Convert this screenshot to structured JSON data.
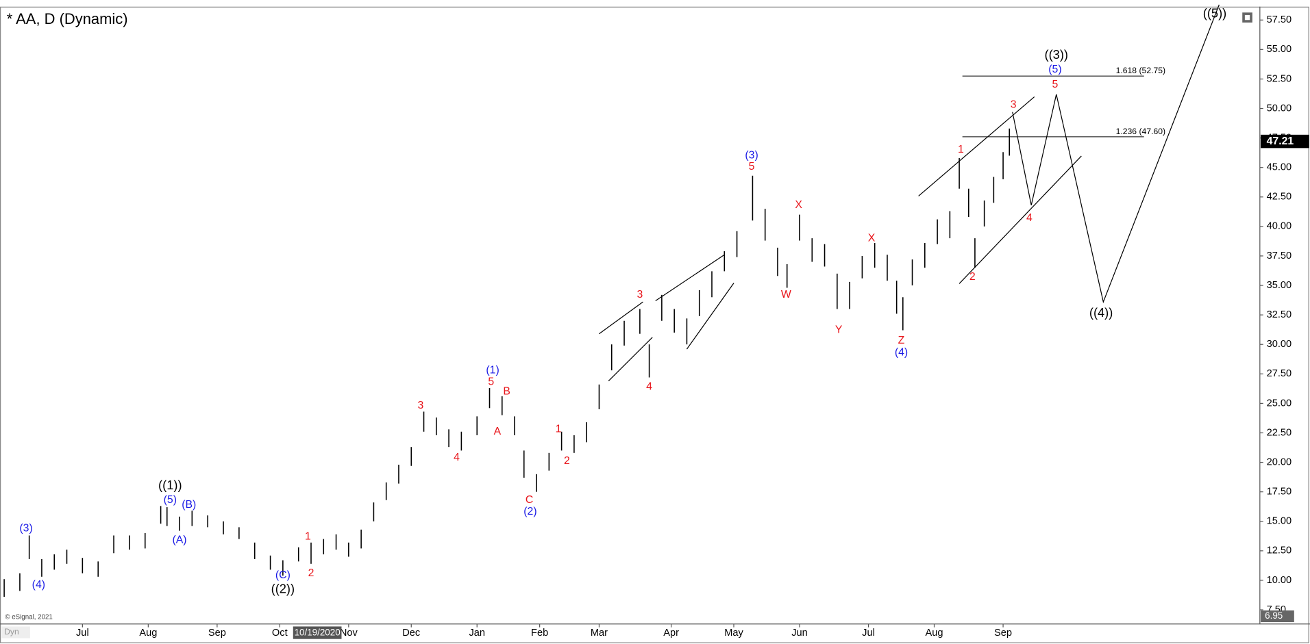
{
  "chart_data": {
    "type": "ohlc",
    "title": "* AA, D (Dynamic)",
    "copyright": "© eSignal, 2021",
    "corner_label": "Dyn",
    "cursor_label": {
      "value": 100,
      "label": "10/19/2020"
    },
    "last_price": 47.21,
    "axis_low": 6.95,
    "xlim": [
      0,
      401
    ],
    "ylim": [
      7.5,
      57.5
    ],
    "xticks": [
      {
        "value": 25,
        "label": "Jul"
      },
      {
        "value": 46,
        "label": "Aug"
      },
      {
        "value": 68,
        "label": "Sep"
      },
      {
        "value": 88,
        "label": "Oct"
      },
      {
        "value": 110,
        "label": "Nov"
      },
      {
        "value": 130,
        "label": "Dec"
      },
      {
        "value": 151,
        "label": "Jan"
      },
      {
        "value": 171,
        "label": "Feb"
      },
      {
        "value": 190,
        "label": "Mar"
      },
      {
        "value": 213,
        "label": "Apr"
      },
      {
        "value": 233,
        "label": "May"
      },
      {
        "value": 254,
        "label": "Jun"
      },
      {
        "value": 276,
        "label": "Jul"
      },
      {
        "value": 297,
        "label": "Aug"
      },
      {
        "value": 319,
        "label": "Sep"
      }
    ],
    "yticks": [
      {
        "value": 7.5,
        "label": "7.50"
      },
      {
        "value": 10,
        "label": "10.00"
      },
      {
        "value": 12.5,
        "label": "12.50"
      },
      {
        "value": 15,
        "label": "15.00"
      },
      {
        "value": 17.5,
        "label": "17.50"
      },
      {
        "value": 20,
        "label": "20.00"
      },
      {
        "value": 22.5,
        "label": "22.50"
      },
      {
        "value": 25,
        "label": "25.00"
      },
      {
        "value": 27.5,
        "label": "27.50"
      },
      {
        "value": 30,
        "label": "30.00"
      },
      {
        "value": 32.5,
        "label": "32.50"
      },
      {
        "value": 35,
        "label": "35.00"
      },
      {
        "value": 37.5,
        "label": "37.50"
      },
      {
        "value": 40,
        "label": "40.00"
      },
      {
        "value": 42.5,
        "label": "42.50"
      },
      {
        "value": 45,
        "label": "45.00"
      },
      {
        "value": 47.5,
        "label": "47.50"
      },
      {
        "value": 50,
        "label": "50.00"
      },
      {
        "value": 52.5,
        "label": "52.50"
      },
      {
        "value": 55,
        "label": "55.00"
      },
      {
        "value": 57.5,
        "label": "57.50"
      }
    ],
    "x": [
      0,
      5,
      8,
      12,
      16,
      20,
      25,
      30,
      35,
      40,
      45,
      50,
      52,
      56,
      60,
      65,
      70,
      75,
      80,
      85,
      89,
      94,
      98,
      102,
      106,
      110,
      114,
      118,
      122,
      126,
      130,
      134,
      138,
      142,
      146,
      151,
      155,
      159,
      163,
      166,
      170,
      174,
      178,
      182,
      186,
      190,
      194,
      198,
      203,
      206,
      210,
      214,
      218,
      222,
      226,
      230,
      234,
      239,
      243,
      247,
      250,
      254,
      258,
      262,
      266,
      270,
      274,
      278,
      282,
      285,
      287,
      290,
      294,
      298,
      302,
      305,
      308,
      310,
      313,
      316,
      319,
      321
    ],
    "low": [
      8.6,
      9.1,
      11.8,
      10.3,
      10.9,
      11.4,
      10.6,
      10.3,
      12.3,
      12.6,
      12.7,
      14.8,
      14.6,
      14.2,
      14.6,
      14.5,
      13.9,
      13.5,
      11.8,
      10.9,
      10.4,
      11.6,
      11.4,
      12.2,
      12.6,
      12.0,
      12.7,
      15.0,
      16.8,
      18.2,
      19.7,
      22.6,
      22.3,
      21.3,
      21.0,
      22.3,
      24.6,
      24.0,
      22.3,
      18.7,
      17.5,
      19.3,
      21.0,
      20.8,
      21.7,
      24.5,
      27.8,
      29.9,
      30.9,
      27.2,
      32.0,
      31.0,
      30.0,
      32.4,
      34.0,
      36.2,
      37.4,
      40.5,
      38.8,
      35.8,
      34.8,
      38.8,
      37.0,
      36.6,
      33.0,
      33.0,
      35.6,
      36.5,
      35.4,
      32.6,
      31.2,
      35.0,
      36.5,
      38.5,
      39.0,
      43.2,
      40.8,
      36.5,
      40.0,
      42.0,
      44.0,
      46.0
    ],
    "high": [
      10.1,
      10.6,
      13.8,
      11.8,
      12.2,
      12.6,
      11.9,
      11.6,
      13.8,
      13.8,
      14.0,
      16.3,
      16.2,
      15.4,
      15.9,
      15.5,
      15.0,
      14.5,
      13.2,
      12.1,
      11.7,
      12.8,
      13.2,
      13.5,
      13.9,
      13.2,
      14.3,
      16.6,
      18.3,
      19.8,
      21.3,
      24.3,
      23.8,
      22.8,
      22.6,
      23.9,
      26.3,
      25.6,
      23.9,
      21.0,
      19.0,
      20.8,
      22.6,
      22.3,
      23.4,
      26.6,
      30.0,
      32.0,
      33.0,
      30.0,
      34.2,
      33.0,
      32.2,
      34.6,
      36.2,
      37.9,
      39.6,
      44.3,
      41.5,
      38.2,
      36.8,
      41.0,
      39.0,
      38.5,
      36.0,
      35.3,
      37.5,
      38.6,
      37.6,
      35.4,
      34.0,
      37.2,
      38.6,
      40.6,
      41.3,
      45.8,
      43.2,
      39.0,
      42.2,
      44.2,
      46.3,
      48.3
    ],
    "fib_levels": [
      {
        "value": 52.75,
        "label": "1.618 (52.75)"
      },
      {
        "value": 47.6,
        "label": "1.236 (47.60)"
      }
    ],
    "fib_x": [
      306,
      364
    ],
    "channels": [
      {
        "x": [
          292,
          329
        ],
        "y": [
          42.58,
          50.99
        ]
      },
      {
        "x": [
          305,
          344
        ],
        "y": [
          35.15,
          45.97
        ]
      },
      {
        "x": [
          190,
          204
        ],
        "y": [
          30.9,
          33.6
        ]
      },
      {
        "x": [
          193,
          207
        ],
        "y": [
          26.9,
          30.6
        ]
      },
      {
        "x": [
          208,
          230
        ],
        "y": [
          33.7,
          37.6
        ]
      },
      {
        "x": [
          218,
          233
        ],
        "y": [
          29.6,
          35.2
        ]
      }
    ],
    "projection": {
      "x": [
        322,
        328,
        336,
        351,
        388
      ],
      "y": [
        49.7,
        41.8,
        51.2,
        33.6,
        58.8
      ]
    },
    "wave_labels": [
      {
        "text": "((1))",
        "x": 53,
        "y": 18.0,
        "color": "#000000"
      },
      {
        "text": "(5)",
        "x": 53,
        "y": 16.8,
        "color": "#1a1ae6"
      },
      {
        "text": "(B)",
        "x": 59,
        "y": 16.4,
        "color": "#1a1ae6"
      },
      {
        "text": "(A)",
        "x": 56,
        "y": 13.4,
        "color": "#1a1ae6"
      },
      {
        "text": "(3)",
        "x": 7,
        "y": 14.4,
        "color": "#1a1ae6"
      },
      {
        "text": "(4)",
        "x": 11,
        "y": 9.6,
        "color": "#1a1ae6"
      },
      {
        "text": "(C)",
        "x": 89,
        "y": 10.4,
        "color": "#1a1ae6"
      },
      {
        "text": "((2))",
        "x": 89,
        "y": 9.2,
        "color": "#000000"
      },
      {
        "text": "1",
        "x": 97,
        "y": 13.7,
        "color": "#e8141a"
      },
      {
        "text": "2",
        "x": 98,
        "y": 10.6,
        "color": "#e8141a"
      },
      {
        "text": "3",
        "x": 133,
        "y": 24.8,
        "color": "#e8141a"
      },
      {
        "text": "4",
        "x": 144.5,
        "y": 20.4,
        "color": "#e8141a"
      },
      {
        "text": "(1)",
        "x": 156,
        "y": 27.8,
        "color": "#1a1ae6"
      },
      {
        "text": "5",
        "x": 155.5,
        "y": 26.8,
        "color": "#e8141a"
      },
      {
        "text": "B",
        "x": 160.5,
        "y": 26.0,
        "color": "#e8141a"
      },
      {
        "text": "A",
        "x": 157.5,
        "y": 22.6,
        "color": "#e8141a"
      },
      {
        "text": "C",
        "x": 167.7,
        "y": 16.8,
        "color": "#e8141a"
      },
      {
        "text": "(2)",
        "x": 168,
        "y": 15.8,
        "color": "#1a1ae6"
      },
      {
        "text": "1",
        "x": 177,
        "y": 22.8,
        "color": "#e8141a"
      },
      {
        "text": "2",
        "x": 179.7,
        "y": 20.1,
        "color": "#e8141a"
      },
      {
        "text": "3",
        "x": 203,
        "y": 34.2,
        "color": "#e8141a"
      },
      {
        "text": "4",
        "x": 206,
        "y": 26.4,
        "color": "#e8141a"
      },
      {
        "text": "(3)",
        "x": 238.7,
        "y": 46.0,
        "color": "#1a1ae6"
      },
      {
        "text": "5",
        "x": 238.7,
        "y": 45.05,
        "color": "#e8141a"
      },
      {
        "text": "X",
        "x": 253.7,
        "y": 41.8,
        "color": "#e8141a"
      },
      {
        "text": "W",
        "x": 249.7,
        "y": 34.2,
        "color": "#e8141a"
      },
      {
        "text": "Y",
        "x": 266.5,
        "y": 31.2,
        "color": "#e8141a"
      },
      {
        "text": "X",
        "x": 277,
        "y": 39.0,
        "color": "#e8141a"
      },
      {
        "text": "Z",
        "x": 286.5,
        "y": 30.3,
        "color": "#e8141a"
      },
      {
        "text": "(4)",
        "x": 286.5,
        "y": 29.3,
        "color": "#1a1ae6"
      },
      {
        "text": "1",
        "x": 305.5,
        "y": 46.5,
        "color": "#e8141a"
      },
      {
        "text": "2",
        "x": 309.2,
        "y": 35.7,
        "color": "#e8141a"
      },
      {
        "text": "3",
        "x": 322.3,
        "y": 50.3,
        "color": "#e8141a"
      },
      {
        "text": "4",
        "x": 327.4,
        "y": 40.7,
        "color": "#e8141a"
      },
      {
        "text": "5",
        "x": 335.6,
        "y": 52.0,
        "color": "#e8141a"
      },
      {
        "text": "(5)",
        "x": 335.6,
        "y": 53.3,
        "color": "#1a1ae6"
      },
      {
        "text": "((3))",
        "x": 336,
        "y": 54.5,
        "color": "#000000"
      },
      {
        "text": "((4))",
        "x": 350.3,
        "y": 32.6,
        "color": "#000000"
      },
      {
        "text": "((5))",
        "x": 386.6,
        "y": 58.0,
        "color": "#000000"
      }
    ]
  }
}
